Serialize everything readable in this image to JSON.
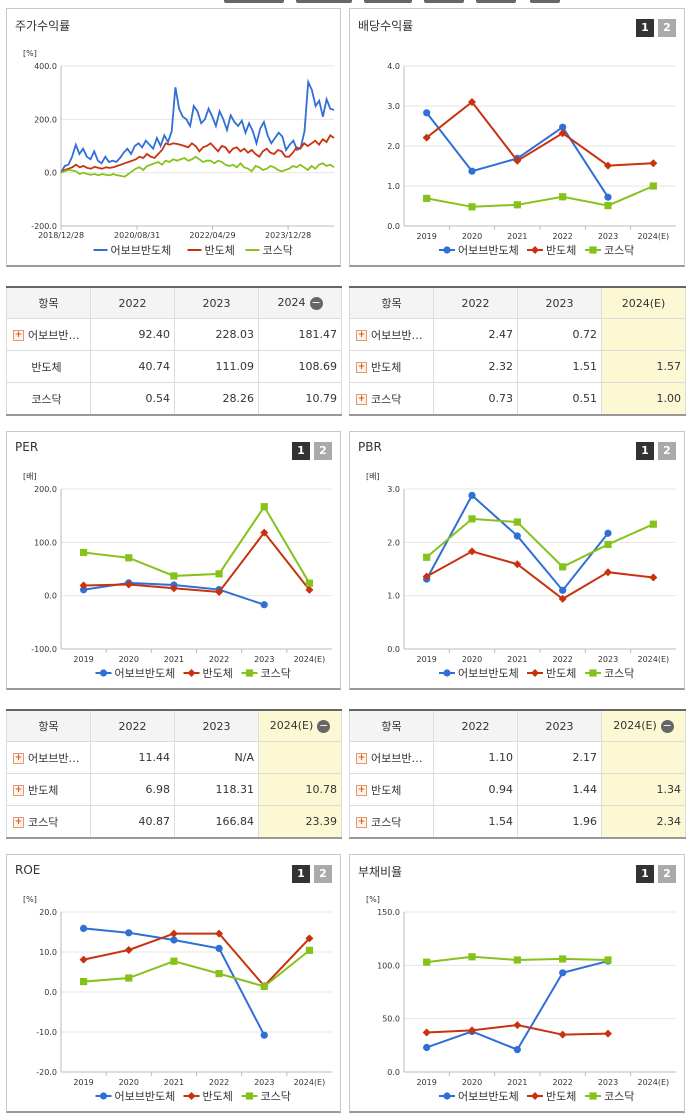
{
  "colors": {
    "blue": "#2f6fd6",
    "red": "#c9320f",
    "green": "#86c21c"
  },
  "legend": [
    "어보브반도체",
    "반도체",
    "코스닥"
  ],
  "paging": [
    "1",
    "2"
  ],
  "panels": [
    {
      "title": "주가수익률",
      "paging": false
    },
    {
      "title": "배당수익률",
      "paging": true
    },
    {
      "title": "PER",
      "paging": true
    },
    {
      "title": "PBR",
      "paging": true
    },
    {
      "title": "ROE",
      "paging": true
    },
    {
      "title": "부채비율",
      "paging": true
    }
  ],
  "tables": [
    {
      "head": [
        "항목",
        "2022",
        "2023",
        "2024"
      ],
      "collapse_icon": "minus-icon",
      "rows": [
        {
          "name": "어보브반…",
          "icon": true,
          "values": [
            "92.40",
            "228.03",
            "181.47"
          ]
        },
        {
          "name": "반도체",
          "icon": false,
          "values": [
            "40.74",
            "111.09",
            "108.69"
          ]
        },
        {
          "name": "코스닥",
          "icon": false,
          "values": [
            "0.54",
            "28.26",
            "10.79"
          ]
        }
      ]
    },
    {
      "head": [
        "항목",
        "2022",
        "2023",
        "2024(E)"
      ],
      "rows": [
        {
          "name": "어보브반…",
          "icon": true,
          "values": [
            "2.47",
            "0.72",
            ""
          ]
        },
        {
          "name": "반도체",
          "icon": true,
          "values": [
            "2.32",
            "1.51",
            "1.57"
          ]
        },
        {
          "name": "코스닥",
          "icon": true,
          "values": [
            "0.73",
            "0.51",
            "1.00"
          ]
        }
      ]
    },
    {
      "head": [
        "항목",
        "2022",
        "2023",
        "2024(E)"
      ],
      "collapse_icon": "minus-icon",
      "rows": [
        {
          "name": "어보브반…",
          "icon": true,
          "values": [
            "11.44",
            "N/A",
            ""
          ]
        },
        {
          "name": "반도체",
          "icon": true,
          "values": [
            "6.98",
            "118.31",
            "10.78"
          ]
        },
        {
          "name": "코스닥",
          "icon": true,
          "values": [
            "40.87",
            "166.84",
            "23.39"
          ]
        }
      ]
    },
    {
      "head": [
        "항목",
        "2022",
        "2023",
        "2024(E)"
      ],
      "collapse_icon": "minus-icon",
      "rows": [
        {
          "name": "어보브반…",
          "icon": true,
          "values": [
            "1.10",
            "2.17",
            ""
          ]
        },
        {
          "name": "반도체",
          "icon": true,
          "values": [
            "0.94",
            "1.44",
            "1.34"
          ]
        },
        {
          "name": "코스닥",
          "icon": true,
          "values": [
            "1.54",
            "1.96",
            "2.34"
          ]
        }
      ]
    }
  ],
  "chart_data": [
    {
      "type": "line",
      "title": "주가수익률",
      "ylabel": "[%]",
      "ylim": [
        -200,
        400
      ],
      "yticks": [
        "400.0",
        "200.0",
        "0.0",
        "-200.0"
      ],
      "x_tick_labels": [
        "2018/12/28",
        "2020/08/31",
        "2022/04/29",
        "2023/12/28"
      ],
      "x_range": [
        "2018-12-28",
        "2024-12-31"
      ],
      "series": [
        {
          "name": "어보브반도체",
          "color": "#2f6fd6",
          "values": [
            0,
            25,
            30,
            60,
            105,
            70,
            90,
            60,
            50,
            80,
            45,
            35,
            60,
            40,
            45,
            40,
            55,
            75,
            90,
            70,
            100,
            110,
            95,
            120,
            105,
            90,
            130,
            100,
            140,
            115,
            155,
            320,
            240,
            210,
            200,
            175,
            250,
            230,
            185,
            200,
            240,
            210,
            175,
            230,
            200,
            160,
            215,
            190,
            175,
            195,
            150,
            185,
            155,
            110,
            165,
            190,
            140,
            110,
            130,
            150,
            135,
            85,
            105,
            120,
            85,
            95,
            155,
            340,
            310,
            250,
            270,
            210,
            275,
            240,
            235
          ]
        },
        {
          "name": "반도체",
          "color": "#c9320f",
          "values": [
            0,
            10,
            15,
            20,
            30,
            20,
            25,
            18,
            15,
            22,
            18,
            15,
            20,
            18,
            20,
            25,
            30,
            35,
            40,
            45,
            50,
            60,
            55,
            70,
            60,
            55,
            70,
            85,
            110,
            105,
            110,
            108,
            104,
            100,
            95,
            110,
            100,
            80,
            95,
            100,
            110,
            95,
            80,
            100,
            95,
            75,
            90,
            95,
            80,
            90,
            75,
            85,
            70,
            60,
            80,
            90,
            75,
            70,
            85,
            80,
            60,
            60,
            75,
            95,
            90,
            110,
            100,
            110,
            120,
            105,
            125,
            115,
            140,
            130
          ]
        },
        {
          "name": "코스닥",
          "color": "#86c21c",
          "values": [
            0,
            5,
            10,
            8,
            5,
            -5,
            0,
            -5,
            -8,
            -5,
            -10,
            -5,
            -8,
            -10,
            -5,
            -10,
            -12,
            -15,
            -5,
            5,
            15,
            20,
            10,
            25,
            30,
            35,
            40,
            30,
            45,
            40,
            50,
            45,
            50,
            55,
            45,
            50,
            60,
            50,
            40,
            45,
            45,
            35,
            45,
            40,
            30,
            25,
            30,
            20,
            35,
            20,
            15,
            5,
            25,
            20,
            10,
            15,
            25,
            20,
            10,
            5,
            10,
            15,
            25,
            20,
            30,
            20,
            10,
            25,
            15,
            30,
            35,
            25,
            30,
            20
          ]
        }
      ]
    },
    {
      "type": "line",
      "title": "배당수익률",
      "ylim": [
        0,
        4
      ],
      "yticks": [
        "4.0",
        "3.0",
        "2.0",
        "1.0",
        "0.0"
      ],
      "categories": [
        "2019",
        "2020",
        "2021",
        "2022",
        "2023",
        "2024(E)"
      ],
      "series": [
        {
          "name": "어보브반도체",
          "color": "#2f6fd6",
          "values": [
            2.83,
            1.37,
            1.69,
            2.47,
            0.72,
            null
          ]
        },
        {
          "name": "반도체",
          "color": "#c9320f",
          "values": [
            2.21,
            3.1,
            1.63,
            2.32,
            1.51,
            1.57
          ]
        },
        {
          "name": "코스닥",
          "color": "#86c21c",
          "values": [
            0.69,
            0.48,
            0.53,
            0.73,
            0.51,
            1.0
          ]
        }
      ]
    },
    {
      "type": "line",
      "title": "PER",
      "ylabel": "[배]",
      "ylim": [
        -100,
        200
      ],
      "yticks": [
        "200.0",
        "100.0",
        "0.0",
        "-100.0"
      ],
      "categories": [
        "2019",
        "2020",
        "2021",
        "2022",
        "2023",
        "2024(E)"
      ],
      "series": [
        {
          "name": "어보브반도체",
          "color": "#2f6fd6",
          "values": [
            11,
            24,
            20,
            11.44,
            -17,
            null
          ]
        },
        {
          "name": "반도체",
          "color": "#c9320f",
          "values": [
            19,
            21,
            14,
            6.98,
            118.31,
            10.78
          ]
        },
        {
          "name": "코스닥",
          "color": "#86c21c",
          "values": [
            81,
            71,
            37,
            40.87,
            166.84,
            23.39
          ]
        }
      ]
    },
    {
      "type": "line",
      "title": "PBR",
      "ylabel": "[배]",
      "ylim": [
        0,
        3
      ],
      "yticks": [
        "3.0",
        "2.0",
        "1.0",
        "0.0"
      ],
      "categories": [
        "2019",
        "2020",
        "2021",
        "2022",
        "2023",
        "2024(E)"
      ],
      "series": [
        {
          "name": "어보브반도체",
          "color": "#2f6fd6",
          "values": [
            1.31,
            2.88,
            2.12,
            1.1,
            2.17,
            null
          ]
        },
        {
          "name": "반도체",
          "color": "#c9320f",
          "values": [
            1.36,
            1.83,
            1.59,
            0.94,
            1.44,
            1.34
          ]
        },
        {
          "name": "코스닥",
          "color": "#86c21c",
          "values": [
            1.72,
            2.44,
            2.38,
            1.54,
            1.96,
            2.34
          ]
        }
      ]
    },
    {
      "type": "line",
      "title": "ROE",
      "ylabel": "[%]",
      "ylim": [
        -20,
        20
      ],
      "yticks": [
        "20.0",
        "10.0",
        "0.0",
        "-10.0",
        "-20.0"
      ],
      "categories": [
        "2019",
        "2020",
        "2021",
        "2022",
        "2023",
        "2024(E)"
      ],
      "series": [
        {
          "name": "어보브반도체",
          "color": "#2f6fd6",
          "values": [
            15.9,
            14.8,
            13.0,
            10.9,
            -10.8,
            null
          ]
        },
        {
          "name": "반도체",
          "color": "#c9320f",
          "values": [
            8.1,
            10.5,
            14.6,
            14.6,
            1.5,
            13.4
          ]
        },
        {
          "name": "코스닥",
          "color": "#86c21c",
          "values": [
            2.6,
            3.5,
            7.7,
            4.6,
            1.4,
            10.4
          ]
        }
      ]
    },
    {
      "type": "line",
      "title": "부채비율",
      "ylabel": "[%]",
      "ylim": [
        0,
        150
      ],
      "yticks": [
        "150.0",
        "100.0",
        "50.0",
        "0.0"
      ],
      "categories": [
        "2019",
        "2020",
        "2021",
        "2022",
        "2023",
        "2024(E)"
      ],
      "series": [
        {
          "name": "어보브반도체",
          "color": "#2f6fd6",
          "values": [
            23,
            38,
            21,
            93,
            104,
            null
          ]
        },
        {
          "name": "반도체",
          "color": "#c9320f",
          "values": [
            37,
            39,
            44,
            35,
            36,
            null
          ]
        },
        {
          "name": "코스닥",
          "color": "#86c21c",
          "values": [
            103,
            108,
            105,
            106,
            105,
            null
          ]
        }
      ]
    }
  ]
}
